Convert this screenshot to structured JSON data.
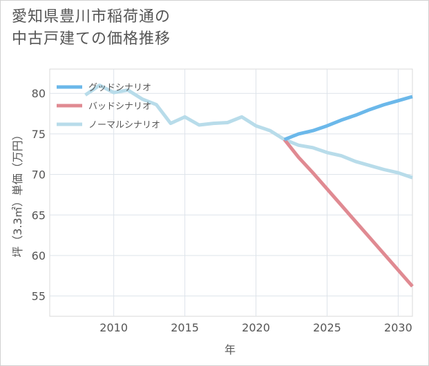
{
  "title_lines": [
    "愛知県豊川市稲荷通の",
    "中古戸建ての価格推移"
  ],
  "chart_data": {
    "type": "line",
    "xlabel": "年",
    "ylabel": "坪（3.3㎡）単価（万円）",
    "xlim": [
      2005.5,
      2031
    ],
    "ylim": [
      52.5,
      83
    ],
    "x_ticks": [
      2010,
      2015,
      2020,
      2025,
      2030
    ],
    "y_ticks": [
      55,
      60,
      65,
      70,
      75,
      80
    ],
    "grid": true,
    "legend_position": "top-left",
    "series": [
      {
        "name": "グッドシナリオ",
        "color": "#6bb8ea",
        "x": [
          2022,
          2023,
          2024,
          2025,
          2026,
          2027,
          2028,
          2029,
          2030,
          2031
        ],
        "y": [
          74.3,
          75.0,
          75.4,
          76.0,
          76.7,
          77.3,
          78.0,
          78.6,
          79.1,
          79.6
        ]
      },
      {
        "name": "バッドシナリオ",
        "color": "#e08a92",
        "x": [
          2022,
          2023,
          2024,
          2025,
          2026,
          2027,
          2028,
          2029,
          2030,
          2031
        ],
        "y": [
          74.3,
          72.1,
          70.2,
          68.2,
          66.2,
          64.2,
          62.2,
          60.2,
          58.2,
          56.2
        ]
      },
      {
        "name": "ノーマルシナリオ",
        "color": "#b8dcea",
        "x": [
          2008,
          2009,
          2010,
          2011,
          2012,
          2013,
          2014,
          2015,
          2016,
          2017,
          2018,
          2019,
          2020,
          2021,
          2022,
          2023,
          2024,
          2025,
          2026,
          2027,
          2028,
          2029,
          2030,
          2031
        ],
        "y": [
          79.8,
          81.0,
          80.1,
          80.4,
          79.3,
          78.6,
          76.3,
          77.1,
          76.1,
          76.3,
          76.4,
          77.1,
          76.0,
          75.4,
          74.3,
          73.6,
          73.3,
          72.7,
          72.3,
          71.6,
          71.1,
          70.6,
          70.2,
          69.6
        ]
      }
    ]
  }
}
